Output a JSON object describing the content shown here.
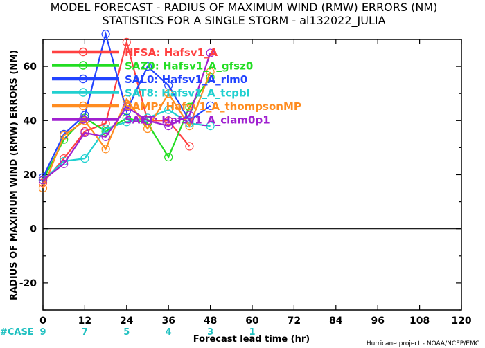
{
  "chart_data": {
    "type": "line",
    "title": "MODEL FORECAST - RADIUS OF MAXIMUM WIND (RMW) ERRORS (NM)",
    "subtitle": "STATISTICS FOR A SINGLE STORM - al132022_JULIA",
    "xlabel": "Forecast lead time (hr)",
    "ylabel": "RADIUS OF MAXIMUM WIND (RMW) ERRORS (NM)",
    "xlim": [
      0,
      120
    ],
    "ylim": [
      -30,
      70
    ],
    "xticks": [
      0,
      12,
      24,
      36,
      48,
      60,
      72,
      84,
      96,
      108,
      120
    ],
    "yticks": [
      -20,
      0,
      20,
      40,
      60
    ],
    "zero_line": true,
    "grid": false,
    "legend_position": "top-left",
    "x": [
      0,
      6,
      12,
      18,
      24,
      30,
      36,
      42,
      48
    ],
    "series": [
      {
        "name": "HFSA: Hafsv1_A",
        "color": "#ff4040",
        "values": [
          17,
          26,
          36,
          39,
          69,
          40,
          40,
          30.5,
          null
        ]
      },
      {
        "name": "SAZ0: Hafsv1_A_gfsz0",
        "color": "#22dd22",
        "values": [
          18,
          33,
          41,
          36,
          41,
          39,
          26.5,
          45,
          56
        ]
      },
      {
        "name": "SAL0: Hafsv1_A_rlm0",
        "color": "#2244ff",
        "values": [
          19,
          35,
          42,
          72,
          43.5,
          60,
          53,
          40,
          45.5
        ]
      },
      {
        "name": "SAT8: Hafsv1_A_tcpbl",
        "color": "#20d0d0",
        "values": [
          18,
          25,
          26,
          37,
          39.5,
          41,
          44,
          39,
          38
        ]
      },
      {
        "name": "SAMP: Hafsv1_A_thompsonMP",
        "color": "#ff8c20",
        "values": [
          15,
          34.5,
          40,
          29.5,
          48,
          37,
          50,
          38,
          58
        ]
      },
      {
        "name": "SAET: Hafsv1_A_clam0p1",
        "color": "#a020d0",
        "values": [
          18,
          24,
          35.5,
          34,
          45,
          40,
          38,
          42,
          65
        ]
      }
    ],
    "cases": {
      "label": "#CASE",
      "x": [
        0,
        12,
        24,
        36,
        48,
        60
      ],
      "values": [
        "9",
        "7",
        "5",
        "4",
        "3",
        "1"
      ],
      "color": "#20c0c0"
    }
  },
  "credit": "Hurricane project - NOAA/NCEP/EMC"
}
